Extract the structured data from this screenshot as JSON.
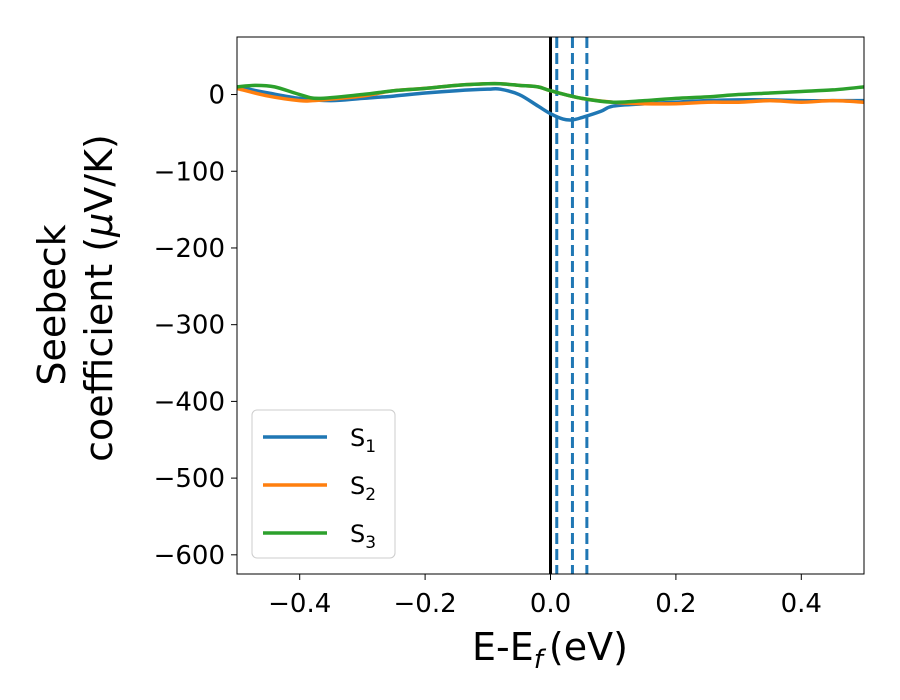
{
  "chart_data": {
    "type": "line",
    "xlabel": "E-E",
    "xlabel_sub": "f",
    "xlabel_unit": "(eV)",
    "ylabel_line1": "Seebeck",
    "ylabel_line2": "coefficient  (",
    "ylabel_mu": "μ",
    "ylabel_unit_end": "V/K)",
    "xlim": [
      -0.5,
      0.5
    ],
    "ylim": [
      -625,
      75
    ],
    "xticks": [
      -0.4,
      -0.2,
      0.0,
      0.2,
      0.4
    ],
    "xtick_labels": [
      "−0.4",
      "−0.2",
      "0.0",
      "0.2",
      "0.4"
    ],
    "yticks": [
      0,
      -100,
      -200,
      -300,
      -400,
      -500,
      -600
    ],
    "ytick_labels": [
      "0",
      "−100",
      "−200",
      "−300",
      "−400",
      "−500",
      "−600"
    ],
    "grid": false,
    "legend_placement": "bottom-left",
    "vlines": [
      {
        "x": 0.0,
        "style": "solid",
        "color": "#000000"
      },
      {
        "x": 0.01,
        "style": "dashed",
        "color": "#1f77b4"
      },
      {
        "x": 0.035,
        "style": "dashed",
        "color": "#1f77b4"
      },
      {
        "x": 0.058,
        "style": "dashed",
        "color": "#1f77b4"
      }
    ],
    "series": [
      {
        "name": "S",
        "name_sub": "1",
        "color": "#1f77b4",
        "x": [
          -0.5,
          -0.45,
          -0.4,
          -0.35,
          -0.3,
          -0.25,
          -0.2,
          -0.15,
          -0.1,
          -0.08,
          -0.05,
          -0.02,
          0.0,
          0.02,
          0.035,
          0.05,
          0.08,
          0.1,
          0.15,
          0.2,
          0.25,
          0.3,
          0.35,
          0.4,
          0.45,
          0.5
        ],
        "y": [
          10,
          2,
          -5,
          -8,
          -5,
          -2,
          2,
          5,
          7,
          7,
          0,
          -15,
          -25,
          -32,
          -33,
          -30,
          -22,
          -15,
          -12,
          -10,
          -8,
          -7,
          -7,
          -8,
          -8,
          -8
        ]
      },
      {
        "name": "S",
        "name_sub": "2",
        "color": "#ff7f0e",
        "x": [
          -0.5,
          -0.45,
          -0.4,
          -0.38,
          -0.35,
          -0.3,
          -0.25,
          -0.2,
          -0.15,
          -0.1,
          -0.08,
          -0.05,
          -0.02,
          0.0,
          0.05,
          0.1,
          0.15,
          0.2,
          0.25,
          0.3,
          0.35,
          0.4,
          0.45,
          0.5
        ],
        "y": [
          8,
          -2,
          -8,
          -8,
          -6,
          -2,
          5,
          8,
          12,
          14,
          14,
          12,
          10,
          5,
          -5,
          -10,
          -12,
          -12,
          -10,
          -10,
          -8,
          -10,
          -8,
          -10
        ]
      },
      {
        "name": "S",
        "name_sub": "3",
        "color": "#2ca02c",
        "x": [
          -0.5,
          -0.47,
          -0.44,
          -0.4,
          -0.37,
          -0.3,
          -0.25,
          -0.2,
          -0.15,
          -0.1,
          -0.08,
          -0.05,
          -0.02,
          0.0,
          0.05,
          0.1,
          0.15,
          0.2,
          0.25,
          0.3,
          0.35,
          0.4,
          0.45,
          0.5
        ],
        "y": [
          10,
          12,
          10,
          0,
          -5,
          0,
          5,
          8,
          12,
          14,
          14,
          12,
          10,
          5,
          -5,
          -10,
          -8,
          -5,
          -3,
          0,
          2,
          4,
          6,
          10
        ]
      }
    ]
  }
}
